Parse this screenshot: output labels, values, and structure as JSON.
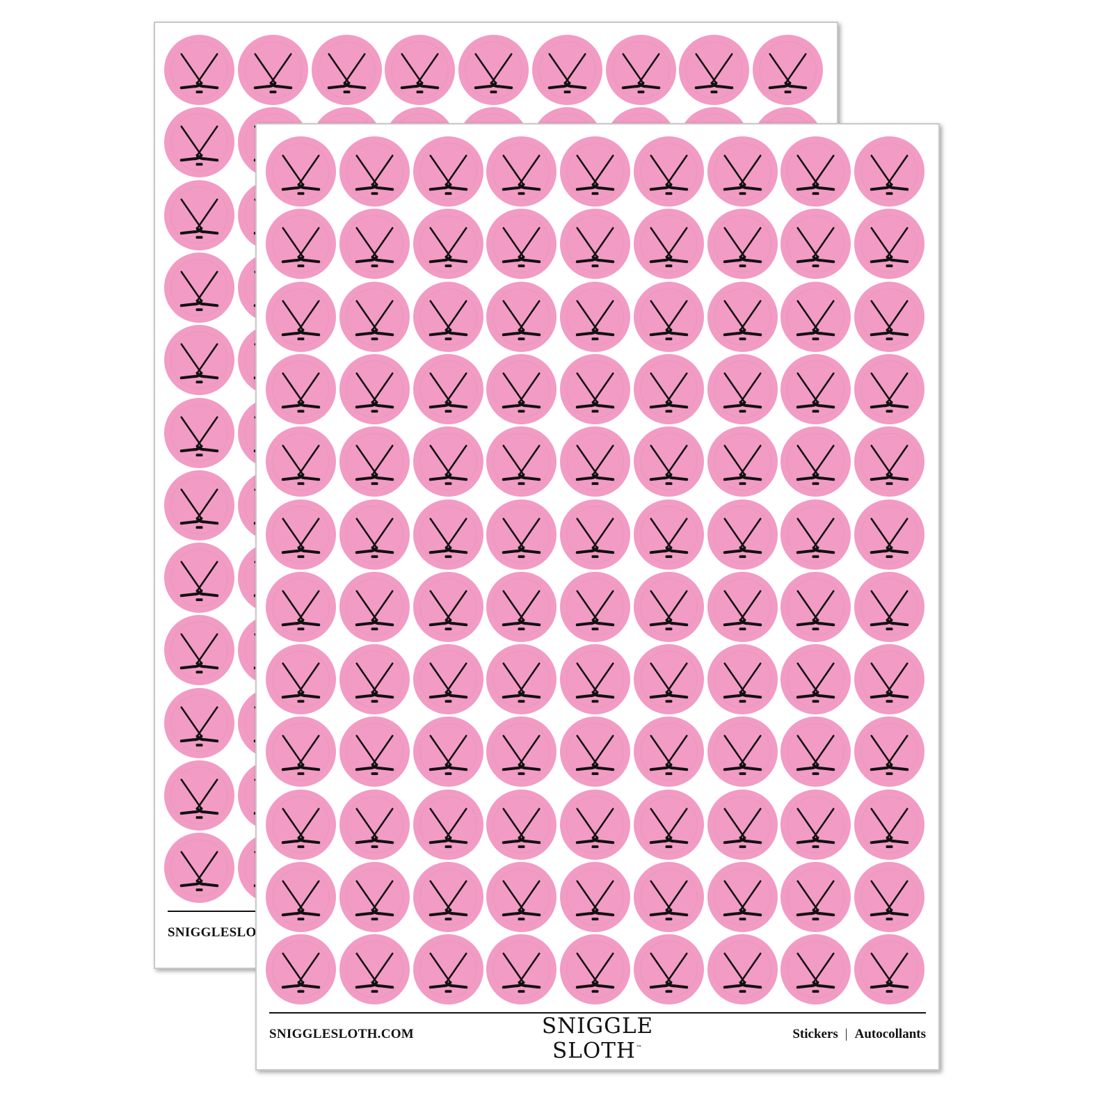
{
  "sticker": {
    "icon": "crossed-hockey-sticks-puck-icon",
    "fill": "#f29bc4",
    "ring": "#e59ab9",
    "ink": "#111111",
    "columns": 9,
    "rows": 12
  },
  "sheets": [
    {
      "url": "SNIGGLESLOTH.COM"
    },
    {
      "url": "SNIGGLESLOTH.COM",
      "logo_line1": "SNIGGLE",
      "logo_line2": "SLOTH",
      "trademark": "™",
      "tag1": "Stickers",
      "separator": "|",
      "tag2": "Autocollants"
    }
  ]
}
